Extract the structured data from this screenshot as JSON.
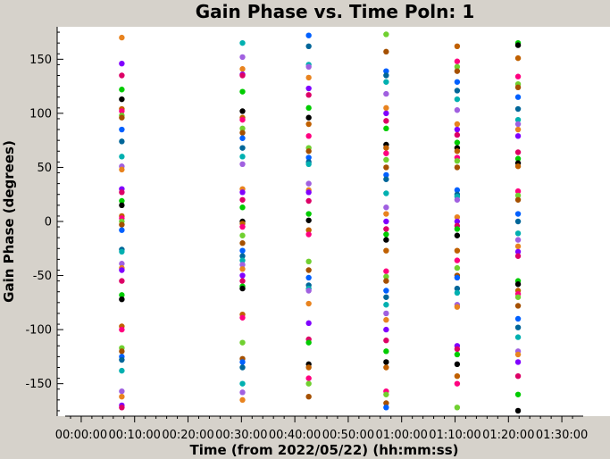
{
  "chart_data": {
    "type": "scatter",
    "title": "Gain Phase vs. Time Poln: 1",
    "xlabel": "Time (from 2022/05/22) (hh:mm:ss)",
    "ylabel": "Gain Phase (degrees)",
    "x_unit": "minutes",
    "xlim": [
      -3,
      94
    ],
    "ylim": [
      -180,
      180
    ],
    "x_ticks": [
      {
        "value": 0,
        "label": "00:00:00"
      },
      {
        "value": 10,
        "label": "00:10:00"
      },
      {
        "value": 20,
        "label": "00:20:00"
      },
      {
        "value": 30,
        "label": "00:30:00"
      },
      {
        "value": 40,
        "label": "00:40:00"
      },
      {
        "value": 50,
        "label": "00:50:00"
      },
      {
        "value": 60,
        "label": "01:00:00"
      },
      {
        "value": 70,
        "label": "01:10:00"
      },
      {
        "value": 80,
        "label": "01:20:00"
      },
      {
        "value": 90,
        "label": "01:30:00"
      }
    ],
    "y_ticks": [
      {
        "value": 150,
        "label": "150"
      },
      {
        "value": 100,
        "label": "100"
      },
      {
        "value": 50,
        "label": "50"
      },
      {
        "value": 0,
        "label": "0"
      },
      {
        "value": -50,
        "label": "-50"
      },
      {
        "value": -100,
        "label": "-100"
      },
      {
        "value": -150,
        "label": "-150"
      }
    ],
    "grid": false,
    "legend": "none",
    "point_colors": [
      "#e8831f",
      "#a55000",
      "#00cc00",
      "#00b0b0",
      "#ff0080",
      "#8000ff",
      "#0060ff",
      "#000000",
      "#a060e0",
      "#70d030",
      "#dd0066",
      "#006699",
      "#c06000"
    ],
    "series": [
      {
        "time": 7.6,
        "phases": [
          170,
          146,
          135,
          122,
          113,
          104,
          102,
          98,
          96,
          85,
          74,
          60,
          51,
          48,
          30,
          27,
          19,
          15,
          5,
          3,
          0,
          -3,
          -8,
          -26,
          -28,
          -39,
          -43,
          -45,
          -55,
          -68,
          -72,
          -97,
          -100,
          -117,
          -120,
          -125,
          -128,
          -138,
          -157,
          -162,
          -170,
          -172
        ]
      },
      {
        "time": 30.2,
        "phases": [
          165,
          152,
          141,
          136,
          135,
          120,
          102,
          96,
          94,
          86,
          82,
          77,
          68,
          60,
          53,
          30,
          27,
          20,
          13,
          0,
          -2,
          -5,
          -13,
          -20,
          -27,
          -32,
          -36,
          -40,
          -44,
          -50,
          -55,
          -60,
          -62,
          -86,
          -89,
          -112,
          -127,
          -130,
          -135,
          -150,
          -158,
          -165
        ]
      },
      {
        "time": 42.6,
        "phases": [
          172,
          162,
          145,
          143,
          133,
          123,
          117,
          105,
          96,
          90,
          79,
          68,
          65,
          59,
          55,
          53,
          35,
          29,
          27,
          19,
          7,
          1,
          -8,
          -12,
          -37,
          -45,
          -52,
          -59,
          -62,
          -64,
          -76,
          -94,
          -109,
          -112,
          -132,
          -135,
          -145,
          -150,
          -162
        ]
      },
      {
        "time": 57.1,
        "phases": [
          173,
          157,
          139,
          135,
          129,
          118,
          105,
          100,
          93,
          86,
          71,
          68,
          63,
          57,
          50,
          43,
          39,
          26,
          13,
          7,
          0,
          -7,
          -12,
          -17,
          -27,
          -46,
          -51,
          -55,
          -64,
          -70,
          -77,
          -85,
          -91,
          -100,
          -110,
          -120,
          -130,
          -135,
          -157,
          -160,
          -168,
          -172
        ]
      },
      {
        "time": 70.4,
        "phases": [
          162,
          148,
          143,
          139,
          129,
          121,
          113,
          103,
          90,
          85,
          80,
          73,
          68,
          65,
          59,
          56,
          50,
          29,
          25,
          23,
          20,
          4,
          0,
          -4,
          -7,
          -13,
          -27,
          -36,
          -43,
          -50,
          -52,
          -62,
          -66,
          -77,
          -79,
          -115,
          -118,
          -123,
          -132,
          -143,
          -150,
          -172
        ]
      },
      {
        "time": 81.8,
        "phases": [
          165,
          163,
          151,
          134,
          127,
          124,
          115,
          104,
          94,
          90,
          85,
          79,
          64,
          58,
          54,
          51,
          28,
          24,
          20,
          7,
          0,
          -11,
          -17,
          -23,
          -28,
          -32,
          -55,
          -58,
          -64,
          -67,
          -70,
          -78,
          -90,
          -98,
          -107,
          -120,
          -123,
          -130,
          -143,
          -160,
          -175
        ]
      }
    ]
  }
}
